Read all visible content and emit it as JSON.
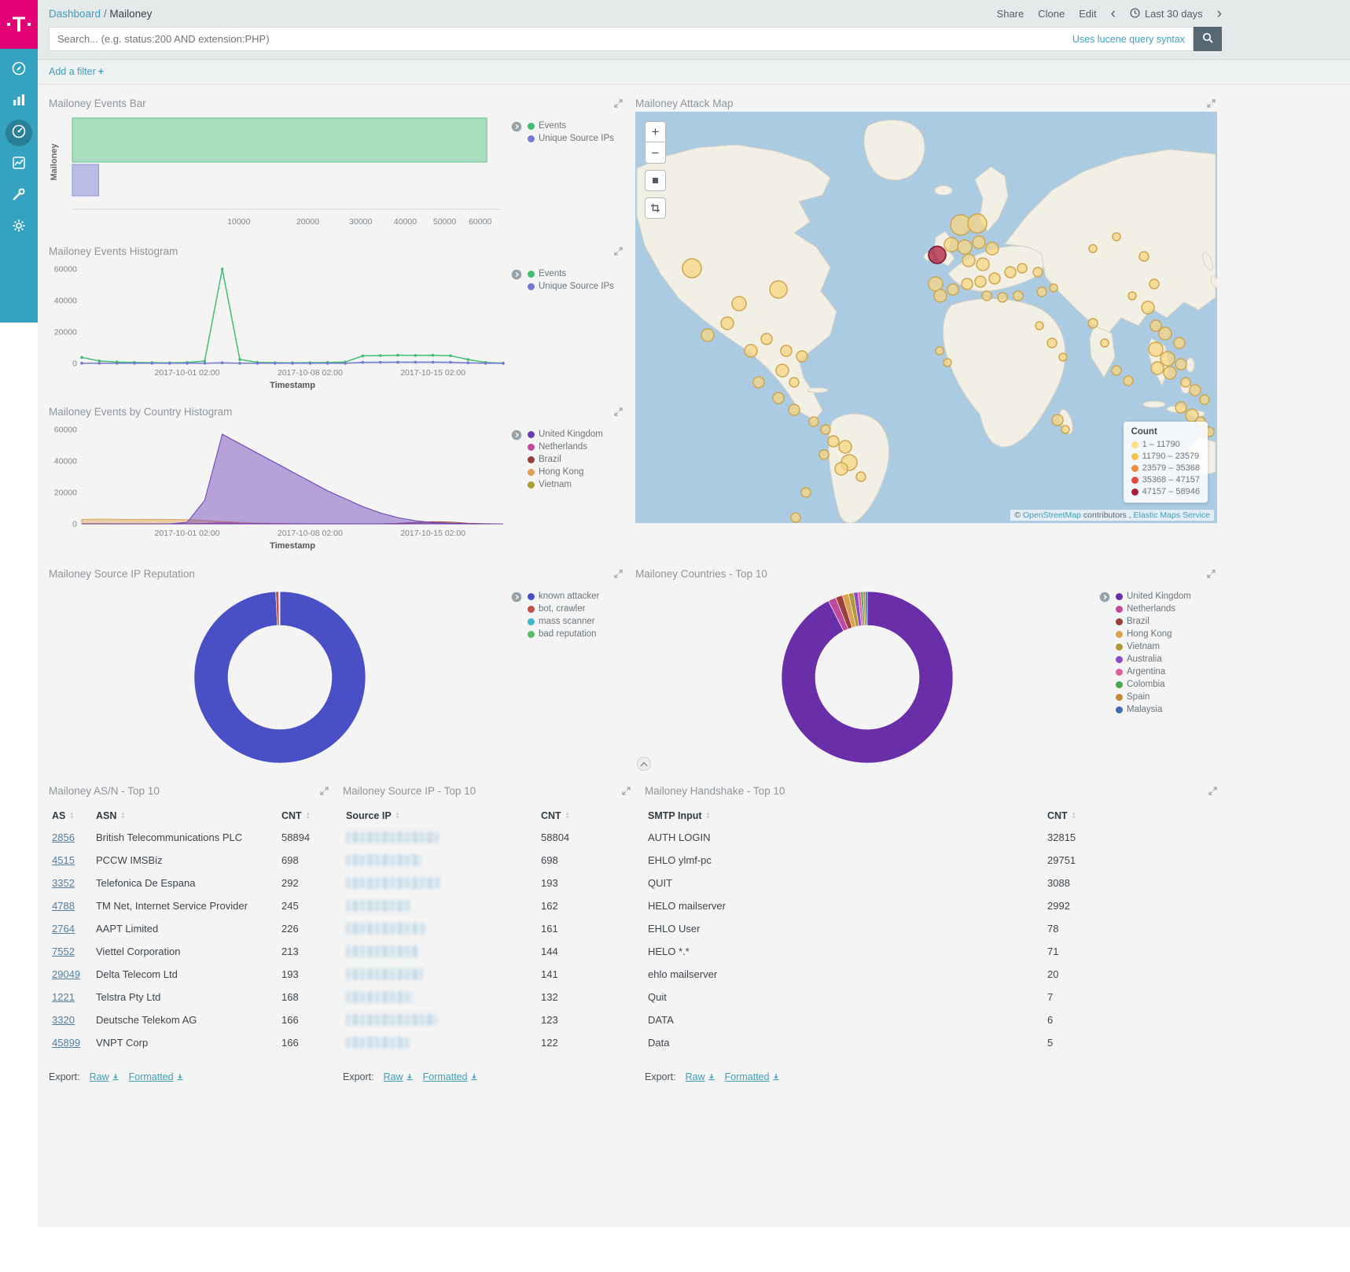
{
  "branding": {
    "logo_text": "T"
  },
  "topbar": {
    "breadcrumb": {
      "root": "Dashboard",
      "separator": "/",
      "current": "Mailoney"
    },
    "share": "Share",
    "clone": "Clone",
    "edit": "Edit",
    "time_range": "Last 30 days"
  },
  "search": {
    "placeholder": "Search... (e.g. status:200 AND extension:PHP)",
    "syntax_hint": "Uses lucene query syntax"
  },
  "filter_bar": {
    "add_filter": "Add a filter",
    "plus": "+"
  },
  "panels": {
    "events_bar": {
      "title": "Mailoney Events Bar",
      "legend": [
        {
          "label": "Events",
          "color": "#3fbf6e"
        },
        {
          "label": "Unique Source IPs",
          "color": "#7579cf"
        }
      ]
    },
    "events_histogram": {
      "title": "Mailoney Events Histogram",
      "legend": [
        {
          "label": "Events",
          "color": "#3fbf6e"
        },
        {
          "label": "Unique Source IPs",
          "color": "#7579cf"
        }
      ]
    },
    "country_histogram": {
      "title": "Mailoney Events by Country Histogram",
      "legend": [
        {
          "label": "United Kingdom",
          "color": "#6a3fb5"
        },
        {
          "label": "Netherlands",
          "color": "#c24a9e"
        },
        {
          "label": "Brazil",
          "color": "#9a403c"
        },
        {
          "label": "Hong Kong",
          "color": "#dca054"
        },
        {
          "label": "Vietnam",
          "color": "#ad9c34"
        }
      ]
    },
    "attack_map": {
      "title": "Mailoney Attack Map",
      "zoom_in": "+",
      "zoom_out": "−",
      "legend_title": "Count",
      "legend": [
        {
          "label": "1 – 11790",
          "color": "#fbe27d"
        },
        {
          "label": "11790 – 23579",
          "color": "#f6c24f"
        },
        {
          "label": "23579 – 35368",
          "color": "#ee8f3f"
        },
        {
          "label": "35368 – 47157",
          "color": "#e14b42"
        },
        {
          "label": "47157 – 58946",
          "color": "#ad1d3b"
        }
      ],
      "attribution": {
        "copyright": "©",
        "osm_link": "OpenStreetMap",
        "contributors": "contributors ,",
        "ems_link": "Elastic Maps Service"
      }
    },
    "ip_reputation": {
      "title": "Mailoney Source IP Reputation",
      "legend": [
        {
          "label": "known attacker",
          "color": "#4950c6"
        },
        {
          "label": "bot, crawler",
          "color": "#c34f44"
        },
        {
          "label": "mass scanner",
          "color": "#3fb8c8"
        },
        {
          "label": "bad reputation",
          "color": "#58bd66"
        }
      ]
    },
    "countries_top": {
      "title": "Mailoney Countries - Top 10",
      "legend": [
        {
          "label": "United Kingdom",
          "color": "#6a2fa8"
        },
        {
          "label": "Netherlands",
          "color": "#c24a9e"
        },
        {
          "label": "Brazil",
          "color": "#9a403c"
        },
        {
          "label": "Hong Kong",
          "color": "#dca054"
        },
        {
          "label": "Vietnam",
          "color": "#ad9c34"
        },
        {
          "label": "Australia",
          "color": "#8d4bc4"
        },
        {
          "label": "Argentina",
          "color": "#e05fa0"
        },
        {
          "label": "Colombia",
          "color": "#4ca64c"
        },
        {
          "label": "Spain",
          "color": "#c78540"
        },
        {
          "label": "Malaysia",
          "color": "#3a6fb0"
        }
      ]
    },
    "asn_table": {
      "title": "Mailoney AS/N - Top 10",
      "columns": [
        {
          "key": "as",
          "label": "AS",
          "type": "link"
        },
        {
          "key": "asn",
          "label": "ASN"
        },
        {
          "key": "cnt",
          "label": "CNT"
        }
      ],
      "rows": [
        {
          "as": "2856",
          "asn": "British Telecommunications PLC",
          "cnt": "58894"
        },
        {
          "as": "4515",
          "asn": "PCCW IMSBiz",
          "cnt": "698"
        },
        {
          "as": "3352",
          "asn": "Telefonica De Espana",
          "cnt": "292"
        },
        {
          "as": "4788",
          "asn": "TM Net, Internet Service Provider",
          "cnt": "245"
        },
        {
          "as": "2764",
          "asn": "AAPT Limited",
          "cnt": "226"
        },
        {
          "as": "7552",
          "asn": "Viettel Corporation",
          "cnt": "213"
        },
        {
          "as": "29049",
          "asn": "Delta Telecom Ltd",
          "cnt": "193"
        },
        {
          "as": "1221",
          "asn": "Telstra Pty Ltd",
          "cnt": "168"
        },
        {
          "as": "3320",
          "asn": "Deutsche Telekom AG",
          "cnt": "166"
        },
        {
          "as": "45899",
          "asn": "VNPT Corp",
          "cnt": "166"
        }
      ],
      "export": {
        "label": "Export:",
        "raw": "Raw",
        "formatted": "Formatted"
      }
    },
    "srcip_table": {
      "title": "Mailoney Source IP - Top 10",
      "columns": [
        {
          "key": "ip",
          "label": "Source IP",
          "type": "redacted"
        },
        {
          "key": "cnt",
          "label": "CNT"
        }
      ],
      "rows": [
        {
          "ip": "",
          "cnt": "58804"
        },
        {
          "ip": "",
          "cnt": "698"
        },
        {
          "ip": "",
          "cnt": "193"
        },
        {
          "ip": "",
          "cnt": "162"
        },
        {
          "ip": "",
          "cnt": "161"
        },
        {
          "ip": "",
          "cnt": "144"
        },
        {
          "ip": "",
          "cnt": "141"
        },
        {
          "ip": "",
          "cnt": "132"
        },
        {
          "ip": "",
          "cnt": "123"
        },
        {
          "ip": "",
          "cnt": "122"
        }
      ],
      "export": {
        "label": "Export:",
        "raw": "Raw",
        "formatted": "Formatted"
      }
    },
    "handshake_table": {
      "title": "Mailoney Handshake - Top 10",
      "columns": [
        {
          "key": "input",
          "label": "SMTP Input"
        },
        {
          "key": "cnt",
          "label": "CNT"
        }
      ],
      "rows": [
        {
          "input": "AUTH LOGIN",
          "cnt": "32815"
        },
        {
          "input": "EHLO ylmf-pc",
          "cnt": "29751"
        },
        {
          "input": "QUIT",
          "cnt": "3088"
        },
        {
          "input": "HELO mailserver",
          "cnt": "2992"
        },
        {
          "input": "EHLO User",
          "cnt": "78"
        },
        {
          "input": "HELO *.*",
          "cnt": "71"
        },
        {
          "input": "ehlo mailserver",
          "cnt": "20"
        },
        {
          "input": "Quit",
          "cnt": "7"
        },
        {
          "input": "DATA",
          "cnt": "6"
        },
        {
          "input": "Data",
          "cnt": "5"
        }
      ],
      "export": {
        "label": "Export:",
        "raw": "Raw",
        "formatted": "Formatted"
      }
    }
  },
  "chart_data": [
    {
      "id": "events_bar",
      "type": "bar",
      "orientation": "horizontal",
      "scale": "sqrt",
      "category": "Mailoney",
      "xmax": 66000,
      "xticks": [
        10000,
        20000,
        30000,
        40000,
        50000,
        60000
      ],
      "series": [
        {
          "name": "Events",
          "value": 62000,
          "fill": "#a9dfbf",
          "stroke": "#6cc393"
        },
        {
          "name": "Unique Source IPs",
          "value": 250,
          "fill": "#b9bce5",
          "stroke": "#9297d8"
        }
      ]
    },
    {
      "id": "events_histogram",
      "type": "line",
      "xlabel": "Timestamp",
      "ymax": 62000,
      "yticks": [
        0,
        20000,
        40000,
        60000
      ],
      "xticks": [
        {
          "i": 6,
          "label": "2017-10-01 02:00"
        },
        {
          "i": 13,
          "label": "2017-10-08 02:00"
        },
        {
          "i": 20,
          "label": "2017-10-15 02:00"
        }
      ],
      "series": [
        {
          "name": "Events",
          "color": "#3fbf6e",
          "values": [
            3800,
            1600,
            900,
            600,
            500,
            400,
            600,
            1500,
            60000,
            2500,
            700,
            500,
            400,
            500,
            600,
            900,
            4800,
            5000,
            5200,
            5100,
            5200,
            4900,
            2500,
            600,
            200
          ]
        },
        {
          "name": "Unique Source IPs",
          "color": "#7579cf",
          "values": [
            150,
            120,
            100,
            90,
            80,
            80,
            90,
            120,
            400,
            150,
            90,
            80,
            80,
            80,
            90,
            100,
            700,
            750,
            800,
            780,
            800,
            760,
            400,
            100,
            50
          ]
        }
      ]
    },
    {
      "id": "country_histogram",
      "type": "area",
      "xlabel": "Timestamp",
      "ymax": 62000,
      "yticks": [
        0,
        20000,
        40000,
        60000
      ],
      "xticks": [
        {
          "i": 6,
          "label": "2017-10-01 02:00"
        },
        {
          "i": 13,
          "label": "2017-10-08 02:00"
        },
        {
          "i": 20,
          "label": "2017-10-15 02:00"
        }
      ],
      "series": [
        {
          "name": "United Kingdom",
          "color": "#6a3fb5",
          "values": [
            0,
            0,
            0,
            0,
            0,
            0,
            1000,
            15000,
            57000,
            51000,
            45000,
            39000,
            33000,
            27000,
            21000,
            16000,
            11000,
            7000,
            4000,
            2000,
            800,
            300,
            100,
            0,
            0
          ]
        },
        {
          "name": "Netherlands",
          "color": "#c24a9e",
          "values": [
            0,
            0,
            0,
            0,
            0,
            0,
            0,
            300,
            700,
            400,
            200,
            100,
            0,
            0,
            0,
            0,
            0,
            0,
            0,
            0,
            0,
            0,
            0,
            0,
            0
          ]
        },
        {
          "name": "Brazil",
          "color": "#9a403c",
          "values": [
            0,
            0,
            0,
            0,
            0,
            0,
            0,
            0,
            0,
            0,
            0,
            0,
            0,
            0,
            0,
            0,
            0,
            0,
            300,
            900,
            1400,
            1100,
            400,
            100,
            0
          ]
        },
        {
          "name": "Hong Kong",
          "color": "#dca054",
          "values": [
            2800,
            3000,
            2900,
            2800,
            2900,
            2800,
            2600,
            2200,
            1500,
            900,
            500,
            300,
            200,
            150,
            100,
            80,
            60,
            50,
            40,
            30,
            20,
            10,
            0,
            0,
            0
          ]
        },
        {
          "name": "Vietnam",
          "color": "#ad9c34",
          "values": [
            200,
            180,
            160,
            150,
            140,
            130,
            120,
            100,
            80,
            60,
            40,
            30,
            20,
            10,
            0,
            0,
            0,
            0,
            0,
            0,
            0,
            0,
            0,
            0,
            0
          ]
        }
      ]
    },
    {
      "id": "reputation_donut",
      "type": "pie",
      "donut": true,
      "slices": [
        {
          "label": "known attacker",
          "value": 60800,
          "color": "#4950c6"
        },
        {
          "label": "bot, crawler",
          "value": 350,
          "color": "#c34f44"
        },
        {
          "label": "mass scanner",
          "value": 90,
          "color": "#3fb8c8"
        },
        {
          "label": "bad reputation",
          "value": 40,
          "color": "#58bd66"
        }
      ]
    },
    {
      "id": "countries_donut",
      "type": "pie",
      "donut": true,
      "slices": [
        {
          "label": "United Kingdom",
          "value": 58894,
          "color": "#6a2fa8"
        },
        {
          "label": "Netherlands",
          "value": 950,
          "color": "#c24a9e"
        },
        {
          "label": "Brazil",
          "value": 820,
          "color": "#9a403c"
        },
        {
          "label": "Hong Kong",
          "value": 760,
          "color": "#dca054"
        },
        {
          "label": "Vietnam",
          "value": 610,
          "color": "#ad9c34"
        },
        {
          "label": "Australia",
          "value": 520,
          "color": "#8d4bc4"
        },
        {
          "label": "Argentina",
          "value": 330,
          "color": "#e05fa0"
        },
        {
          "label": "Colombia",
          "value": 280,
          "color": "#4ca64c"
        },
        {
          "label": "Spain",
          "value": 260,
          "color": "#c78540"
        },
        {
          "label": "Malaysia",
          "value": 240,
          "color": "#3a6fb0"
        }
      ]
    },
    {
      "id": "attack_map",
      "type": "map",
      "levels": [
        {
          "fill": "#f7d784",
          "stroke": "#cfa64e"
        },
        {
          "fill": "#f6c24f",
          "stroke": "#c9922f"
        },
        {
          "fill": "#ee8f3f",
          "stroke": "#bd6a22"
        },
        {
          "fill": "#e14b42",
          "stroke": "#a92f28"
        },
        {
          "fill": "#ad1d3b",
          "stroke": "#7c1029"
        }
      ],
      "circles": [
        [
          414,
          144,
          13
        ],
        [
          435,
          142,
          12
        ],
        [
          402,
          169,
          9
        ],
        [
          419,
          172,
          9
        ],
        [
          437,
          166,
          8
        ],
        [
          454,
          174,
          8
        ],
        [
          424,
          189,
          8
        ],
        [
          442,
          194,
          8
        ],
        [
          382,
          219,
          9
        ],
        [
          388,
          234,
          8
        ],
        [
          404,
          226,
          7
        ],
        [
          422,
          219,
          7
        ],
        [
          439,
          216,
          7
        ],
        [
          457,
          212,
          7
        ],
        [
          477,
          204,
          7
        ],
        [
          492,
          199,
          6
        ],
        [
          512,
          204,
          6
        ],
        [
          447,
          234,
          6
        ],
        [
          467,
          236,
          6
        ],
        [
          487,
          234,
          6
        ],
        [
          517,
          229,
          6
        ],
        [
          532,
          224,
          5
        ],
        [
          384,
          182,
          11,
          4
        ],
        [
          72,
          199,
          12
        ],
        [
          132,
          244,
          9
        ],
        [
          182,
          226,
          11
        ],
        [
          117,
          269,
          8
        ],
        [
          92,
          284,
          8
        ],
        [
          147,
          304,
          8
        ],
        [
          167,
          289,
          7
        ],
        [
          192,
          304,
          7
        ],
        [
          212,
          311,
          7
        ],
        [
          187,
          329,
          8
        ],
        [
          157,
          344,
          7
        ],
        [
          202,
          344,
          6
        ],
        [
          182,
          364,
          7
        ],
        [
          202,
          379,
          7
        ],
        [
          227,
          394,
          6
        ],
        [
          242,
          404,
          6
        ],
        [
          252,
          419,
          7
        ],
        [
          267,
          426,
          8
        ],
        [
          240,
          436,
          6
        ],
        [
          272,
          446,
          10
        ],
        [
          262,
          454,
          8
        ],
        [
          287,
          464,
          6
        ],
        [
          217,
          484,
          6
        ],
        [
          204,
          516,
          6
        ],
        [
          387,
          304,
          5
        ],
        [
          397,
          319,
          5
        ],
        [
          537,
          392,
          7
        ],
        [
          547,
          404,
          5
        ],
        [
          514,
          272,
          5
        ],
        [
          530,
          294,
          6
        ],
        [
          544,
          312,
          5
        ],
        [
          582,
          174,
          5
        ],
        [
          612,
          159,
          5
        ],
        [
          582,
          269,
          6
        ],
        [
          597,
          294,
          5
        ],
        [
          647,
          184,
          6
        ],
        [
          660,
          219,
          6
        ],
        [
          632,
          234,
          5
        ],
        [
          652,
          249,
          8
        ],
        [
          662,
          272,
          7
        ],
        [
          674,
          282,
          8
        ],
        [
          692,
          294,
          7
        ],
        [
          662,
          302,
          9
        ],
        [
          677,
          314,
          9
        ],
        [
          664,
          326,
          8
        ],
        [
          680,
          332,
          8
        ],
        [
          694,
          321,
          7
        ],
        [
          612,
          329,
          6
        ],
        [
          627,
          342,
          6
        ],
        [
          700,
          344,
          6
        ],
        [
          712,
          354,
          7
        ],
        [
          724,
          366,
          6
        ],
        [
          694,
          376,
          7
        ],
        [
          708,
          386,
          8
        ],
        [
          719,
          394,
          6
        ],
        [
          730,
          407,
          6
        ]
      ]
    }
  ]
}
